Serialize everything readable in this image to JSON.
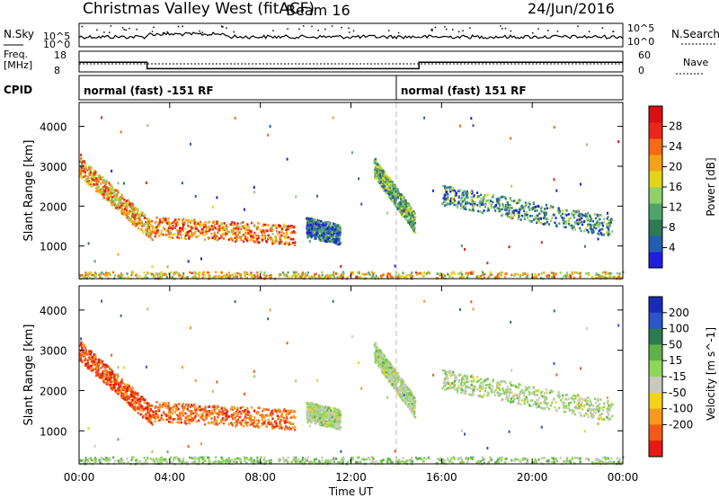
{
  "header": {
    "title": "Christmas Valley West (fitACF)",
    "beam": "Beam 16",
    "date": "24/Jun/2016"
  },
  "top_panels": {
    "nsky_label": "N.Sky",
    "nsearch_label": "N.Search",
    "count_ticks_left": [
      "10^5",
      "10^0"
    ],
    "count_ticks_right": [
      "10^5",
      "10^0"
    ],
    "freq_label": "Freq.",
    "freq_unit": "[MHz]",
    "freq_ticks": [
      "18",
      "8"
    ],
    "nave_label": "Nave",
    "nave_ticks": [
      "60",
      "0"
    ],
    "cpid_label": "CPID",
    "cpid_segments": [
      {
        "label": "normal (fast) -151 RF",
        "start_hour": 0,
        "end_hour": 14
      },
      {
        "label": "normal (fast) 151 RF",
        "start_hour": 14,
        "end_hour": 24
      }
    ]
  },
  "time_axis": {
    "label": "Time UT",
    "ticks": [
      "00:00",
      "04:00",
      "08:00",
      "12:00",
      "16:00",
      "20:00",
      "00:00"
    ],
    "tick_hours": [
      0,
      4,
      8,
      12,
      16,
      20,
      24
    ]
  },
  "range_axis": {
    "label": "Slant Range [km]",
    "ticks": [
      "1000",
      "2000",
      "3000",
      "4000"
    ],
    "tick_values": [
      1000,
      2000,
      3000,
      4000
    ],
    "range": [
      180,
      4600
    ]
  },
  "power_scale": {
    "label": "Power [dB]",
    "ticks": [
      "4",
      "8",
      "12",
      "16",
      "20",
      "24",
      "28"
    ],
    "tick_values": [
      4,
      8,
      12,
      16,
      20,
      24,
      28
    ],
    "range": [
      2,
      30
    ],
    "colors": [
      "#1e1edc",
      "#235fb0",
      "#2f7a55",
      "#4fa46c",
      "#8fd06a",
      "#e4d419",
      "#f5a21b",
      "#f46a15",
      "#e8271a",
      "#d81014"
    ]
  },
  "velocity_scale": {
    "label": "Velocity [m s^-1]",
    "ticks": [
      "200",
      "100",
      "50",
      "15",
      "-15",
      "-50",
      "-100",
      "-200"
    ],
    "colors": [
      "#1a2ab8",
      "#2b55c8",
      "#2d7a52",
      "#5fb24a",
      "#8ed65a",
      "#c9c9c0",
      "#f3d21c",
      "#f59a1e",
      "#f25a18",
      "#e61a12"
    ]
  },
  "chart_data": {
    "type": "heatmap",
    "title": "Christmas Valley West (fitACF) Beam 16 24/Jun/2016",
    "xlabel": "Time UT",
    "ylabel": "Slant Range [km]",
    "xlim_hours": [
      0,
      24
    ],
    "ylim_km": [
      180,
      4600
    ],
    "frequency_mhz": [
      {
        "start_hour": 0,
        "end_hour": 3,
        "value": 14
      },
      {
        "start_hour": 3,
        "end_hour": 15,
        "value": 10
      },
      {
        "start_hour": 15,
        "end_hour": 24,
        "value": 14
      }
    ],
    "scatter_features": [
      {
        "name": "descending echo band",
        "start_hour": 0.0,
        "end_hour": 3.2,
        "start_range_km": 3000,
        "end_range_km": 1400,
        "power_db": 20,
        "velocity": -180
      },
      {
        "name": "midday band",
        "start_hour": 3.2,
        "end_hour": 9.5,
        "start_range_km": 1500,
        "end_range_km": 1300,
        "power_db": 22,
        "velocity": -160
      },
      {
        "name": "afternoon streak",
        "start_hour": 10.0,
        "end_hour": 11.5,
        "start_range_km": 1500,
        "end_range_km": 1300,
        "power_db": 8,
        "velocity": 0
      },
      {
        "name": "evening arc",
        "start_hour": 13.0,
        "end_hour": 14.8,
        "start_range_km": 3000,
        "end_range_km": 1600,
        "power_db": 12,
        "velocity": 0
      },
      {
        "name": "night bands",
        "start_hour": 16.0,
        "end_hour": 23.5,
        "start_range_km": 2300,
        "end_range_km": 1500,
        "power_db": 10,
        "velocity": 0
      },
      {
        "name": "near range clutter",
        "start_hour": 0.0,
        "end_hour": 24.0,
        "start_range_km": 250,
        "end_range_km": 250,
        "power_db": 18,
        "velocity": 20
      }
    ]
  }
}
